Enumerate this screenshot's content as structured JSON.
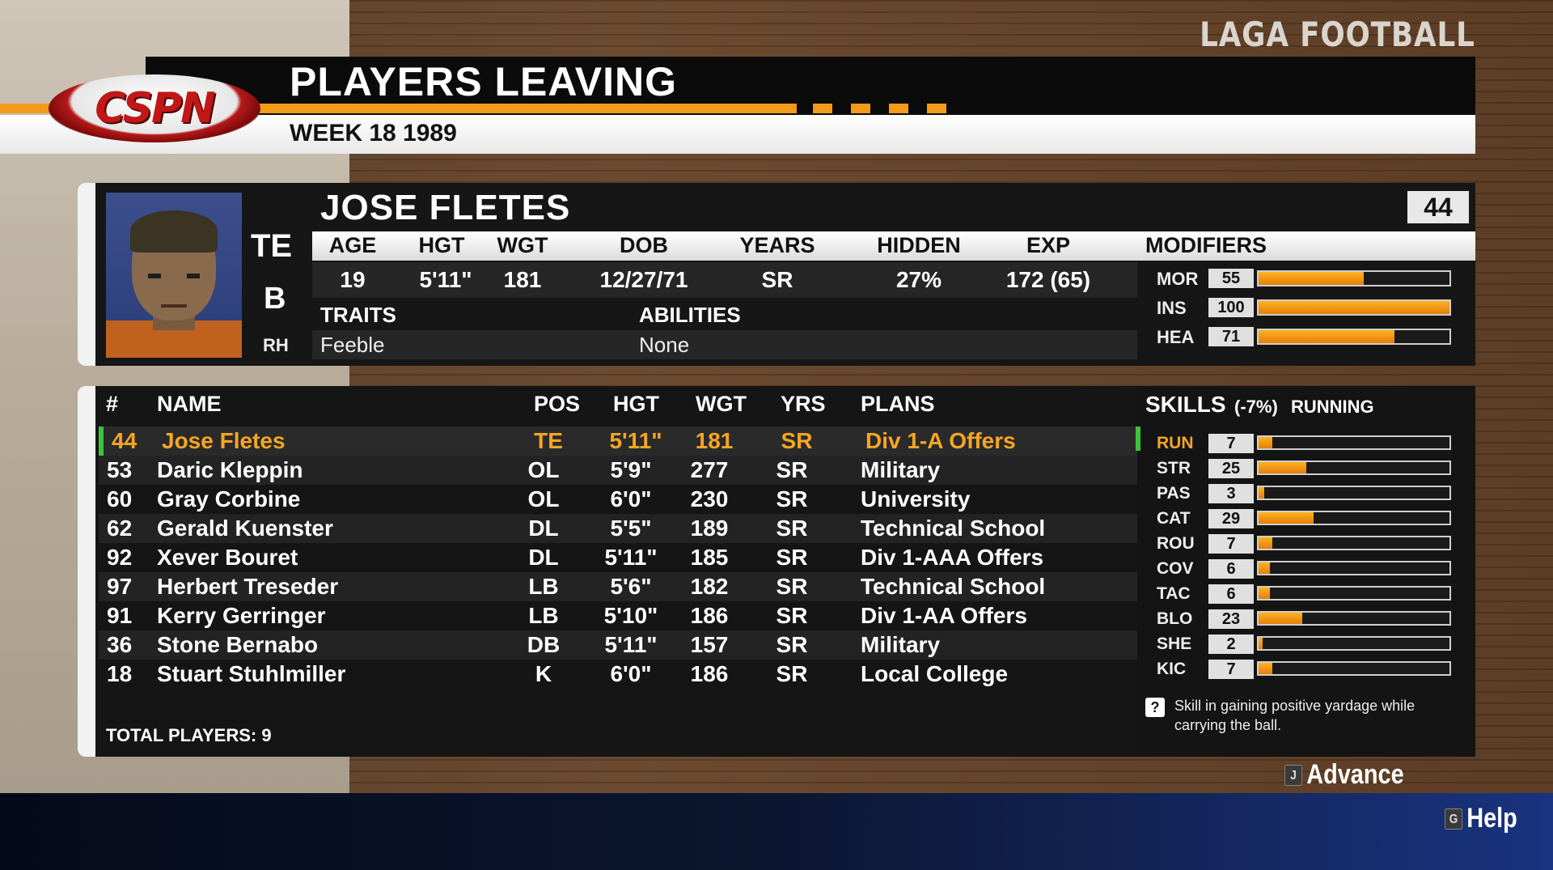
{
  "brand": "LAGA FOOTBALL",
  "logo_text": "CSPN",
  "header": {
    "title": "PLAYERS LEAVING",
    "subtitle": "WEEK 18 1989"
  },
  "player": {
    "name": "JOSE FLETES",
    "jersey": "44",
    "position": "TE",
    "grade": "B",
    "hand": "RH",
    "info_labels": [
      "AGE",
      "HGT",
      "WGT",
      "DOB",
      "YEARS",
      "HIDDEN",
      "EXP"
    ],
    "info_values": [
      "19",
      "5'11\"",
      "181",
      "12/27/71",
      "SR",
      "27%",
      "172 (65)"
    ],
    "traits_label": "TRAITS",
    "abilities_label": "ABILITIES",
    "traits": "Feeble",
    "abilities": "None",
    "modifiers_label": "MODIFIERS",
    "modifiers": [
      {
        "label": "MOR",
        "value": "55",
        "fill": 0.55
      },
      {
        "label": "INS",
        "value": "100",
        "fill": 1.0
      },
      {
        "label": "HEA",
        "value": "71",
        "fill": 0.71
      }
    ]
  },
  "roster": {
    "headers": {
      "num": "#",
      "name": "NAME",
      "pos": "POS",
      "hgt": "HGT",
      "wgt": "WGT",
      "yrs": "YRS",
      "plans": "PLANS"
    },
    "rows": [
      {
        "num": "44",
        "name": "Jose Fletes",
        "pos": "TE",
        "hgt": "5'11\"",
        "wgt": "181",
        "yrs": "SR",
        "plans": "Div 1-A Offers"
      },
      {
        "num": "53",
        "name": "Daric Kleppin",
        "pos": "OL",
        "hgt": "5'9\"",
        "wgt": "277",
        "yrs": "SR",
        "plans": "Military"
      },
      {
        "num": "60",
        "name": "Gray Corbine",
        "pos": "OL",
        "hgt": "6'0\"",
        "wgt": "230",
        "yrs": "SR",
        "plans": "University"
      },
      {
        "num": "62",
        "name": "Gerald Kuenster",
        "pos": "DL",
        "hgt": "5'5\"",
        "wgt": "189",
        "yrs": "SR",
        "plans": "Technical School"
      },
      {
        "num": "92",
        "name": "Xever Bouret",
        "pos": "DL",
        "hgt": "5'11\"",
        "wgt": "185",
        "yrs": "SR",
        "plans": "Div 1-AAA Offers"
      },
      {
        "num": "97",
        "name": "Herbert Treseder",
        "pos": "LB",
        "hgt": "5'6\"",
        "wgt": "182",
        "yrs": "SR",
        "plans": "Technical School"
      },
      {
        "num": "91",
        "name": "Kerry Gerringer",
        "pos": "LB",
        "hgt": "5'10\"",
        "wgt": "186",
        "yrs": "SR",
        "plans": "Div 1-AA Offers"
      },
      {
        "num": "36",
        "name": "Stone Bernabo",
        "pos": "DB",
        "hgt": "5'11\"",
        "wgt": "157",
        "yrs": "SR",
        "plans": "Military"
      },
      {
        "num": "18",
        "name": "Stuart Stuhlmiller",
        "pos": "K",
        "hgt": "6'0\"",
        "wgt": "186",
        "yrs": "SR",
        "plans": "Local College"
      }
    ],
    "total": "TOTAL PLAYERS: 9"
  },
  "skills": {
    "title": "SKILLS",
    "pct": "(-7%)",
    "mode": "RUNNING",
    "items": [
      {
        "label": "RUN",
        "value": "7",
        "fill": 0.07,
        "highlight": true
      },
      {
        "label": "STR",
        "value": "25",
        "fill": 0.25
      },
      {
        "label": "PAS",
        "value": "3",
        "fill": 0.03
      },
      {
        "label": "CAT",
        "value": "29",
        "fill": 0.29
      },
      {
        "label": "ROU",
        "value": "7",
        "fill": 0.07
      },
      {
        "label": "COV",
        "value": "6",
        "fill": 0.06
      },
      {
        "label": "TAC",
        "value": "6",
        "fill": 0.06
      },
      {
        "label": "BLO",
        "value": "23",
        "fill": 0.23
      },
      {
        "label": "SHE",
        "value": "2",
        "fill": 0.02
      },
      {
        "label": "KIC",
        "value": "7",
        "fill": 0.07
      }
    ],
    "help_icon": "?",
    "help": "Skill in gaining positive yardage while carrying the ball."
  },
  "buttons": {
    "advance_key": "J",
    "advance": "Advance",
    "help_key": "G",
    "help": "Help"
  },
  "colors": {
    "accent": "#f39a1a",
    "selected_text": "#f5a623",
    "selected_marker": "#3cc53c",
    "logo_red": "#c21717"
  }
}
